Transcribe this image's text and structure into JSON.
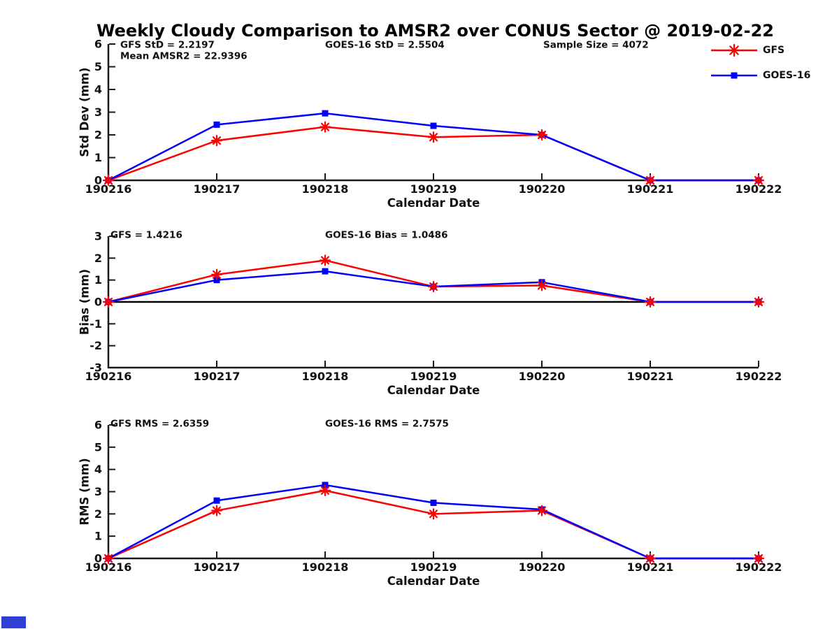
{
  "title": "Weekly Cloudy Comparison to AMSR2 over CONUS Sector @ 2019-02-22",
  "colors": {
    "gfs": "#ff0000",
    "goes16": "#0000ff",
    "axis": "#1a1a1a",
    "zero_line": "#000000",
    "corner_mark": "#2f3fd3"
  },
  "legend": {
    "position": "top-right",
    "entries": [
      {
        "label": "GFS",
        "color": "#ff0000",
        "marker": "asterisk"
      },
      {
        "label": "GOES-16",
        "color": "#0000ff",
        "marker": "square"
      }
    ]
  },
  "chart_data": [
    {
      "type": "line",
      "name": "std-dev",
      "title": "",
      "xlabel": "Calendar Date",
      "ylabel": "Std Dev (mm)",
      "ylim": [
        0,
        6
      ],
      "yticks": [
        0,
        1,
        2,
        3,
        4,
        5,
        6
      ],
      "grid": false,
      "zero_line": false,
      "categories": [
        "190216",
        "190217",
        "190218",
        "190219",
        "190220",
        "190221",
        "190222"
      ],
      "series": [
        {
          "name": "GFS",
          "color": "#ff0000",
          "marker": "asterisk",
          "values": [
            0,
            1.75,
            2.35,
            1.9,
            2.0,
            0,
            0
          ]
        },
        {
          "name": "GOES-16",
          "color": "#0000ff",
          "marker": "square",
          "values": [
            0,
            2.45,
            2.95,
            2.4,
            2.0,
            0,
            0
          ]
        }
      ],
      "annotations": [
        {
          "text": "GFS StD = 2.2197",
          "col": 0,
          "row": 0
        },
        {
          "text": "Mean AMSR2 = 22.9396",
          "col": 0,
          "row": 1
        },
        {
          "text": "GOES-16 StD = 2.5504",
          "col": 1,
          "row": 0
        },
        {
          "text": "Sample Size = 4072",
          "col": 2,
          "row": 0
        }
      ]
    },
    {
      "type": "line",
      "name": "bias",
      "title": "",
      "xlabel": "Calendar Date",
      "ylabel": "Bias (mm)",
      "ylim": [
        -3,
        3
      ],
      "yticks": [
        3,
        2,
        1,
        0,
        -1,
        -2,
        -3
      ],
      "grid": false,
      "zero_line": true,
      "categories": [
        "190216",
        "190217",
        "190218",
        "190219",
        "190220",
        "190221",
        "190222"
      ],
      "series": [
        {
          "name": "GFS",
          "color": "#ff0000",
          "marker": "asterisk",
          "values": [
            0,
            1.25,
            1.9,
            0.7,
            0.75,
            0,
            0
          ]
        },
        {
          "name": "GOES-16",
          "color": "#0000ff",
          "marker": "square",
          "values": [
            0,
            1.0,
            1.4,
            0.7,
            0.9,
            0,
            0
          ]
        }
      ],
      "annotations": [
        {
          "text": "GFS = 1.4216",
          "col": 0,
          "row": 0
        },
        {
          "text": "GOES-16 Bias  = 1.0486",
          "col": 1,
          "row": 0
        }
      ]
    },
    {
      "type": "line",
      "name": "rms",
      "title": "",
      "xlabel": "Calendar Date",
      "ylabel": "RMS (mm)",
      "ylim": [
        0,
        6
      ],
      "yticks": [
        0,
        1,
        2,
        3,
        4,
        5,
        6
      ],
      "grid": false,
      "zero_line": false,
      "categories": [
        "190216",
        "190217",
        "190218",
        "190219",
        "190220",
        "190221",
        "190222"
      ],
      "series": [
        {
          "name": "GFS",
          "color": "#ff0000",
          "marker": "asterisk",
          "values": [
            0,
            2.15,
            3.05,
            2.0,
            2.15,
            0,
            0
          ]
        },
        {
          "name": "GOES-16",
          "color": "#0000ff",
          "marker": "square",
          "values": [
            0,
            2.6,
            3.3,
            2.5,
            2.2,
            0,
            0
          ]
        }
      ],
      "annotations": [
        {
          "text": "GFS RMS = 2.6359",
          "col": 0,
          "row": 0
        },
        {
          "text": "GOES-16 RMS = 2.7575",
          "col": 1,
          "row": 0
        }
      ]
    }
  ]
}
